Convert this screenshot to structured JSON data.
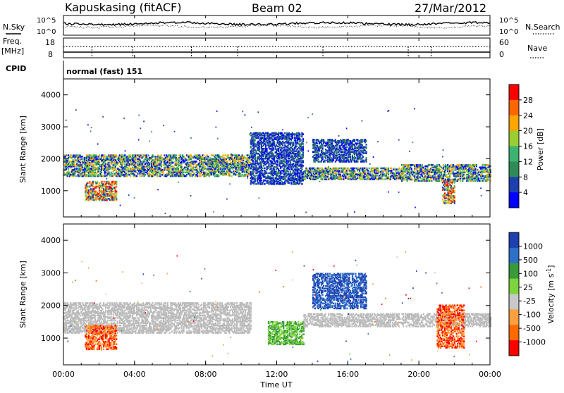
{
  "header": {
    "station": "Kapuskasing (fitACF)",
    "beam": "Beam 02",
    "date": "27/Mar/2012"
  },
  "top_panel": {
    "left_label": "N.Sky",
    "right_label": "N.Search",
    "y_ticks_left": [
      "10^5",
      "10^0"
    ],
    "y_ticks_right": [
      "10^5",
      "10^0"
    ]
  },
  "freq_panel": {
    "left_label_line1": "Freq.",
    "left_label_line2": "[MHz]",
    "right_label": "Nave",
    "y_ticks_left": [
      "18",
      "8"
    ],
    "y_ticks_right": [
      "60",
      "0"
    ]
  },
  "cpid": {
    "label": "CPID",
    "mode": "normal (fast) 151"
  },
  "colors": {
    "power_scale": [
      "#0000ff",
      "#1e3fb0",
      "#2e8b57",
      "#3cb371",
      "#9acd32",
      "#ffa500",
      "#ff6600",
      "#ff0000"
    ],
    "velocity_scale": [
      "#1e3fb0",
      "#2e6fc8",
      "#3a9a3a",
      "#7cd53c",
      "#c8c8c8",
      "#ffa040",
      "#ff6a00",
      "#ff0000"
    ],
    "ground_scatter": "#bbbbbb"
  },
  "chart_data": [
    {
      "type": "heatmap",
      "name": "power",
      "ylabel": "Slant Range [km]",
      "colorbar_label": "Power [dB]",
      "colorbar_ticks": [
        "4",
        "8",
        "12",
        "16",
        "20",
        "24",
        "28"
      ],
      "x_range_hours": [
        0,
        24
      ],
      "ylim_km": [
        180,
        4500
      ],
      "y_ticks": [
        "1000",
        "2000",
        "3000",
        "4000"
      ],
      "y_tick_values": [
        1000,
        2000,
        3000,
        4000
      ],
      "features": [
        {
          "t_start": 0.0,
          "t_end": 10.5,
          "range_start": 1450,
          "range_end": 2100,
          "level": "medium"
        },
        {
          "t_start": 1.2,
          "t_end": 3.0,
          "range_start": 700,
          "range_end": 1300,
          "level": "high"
        },
        {
          "t_start": 10.5,
          "t_end": 13.5,
          "range_start": 1200,
          "range_end": 2800,
          "level": "low"
        },
        {
          "t_start": 13.5,
          "t_end": 19.0,
          "range_start": 1350,
          "range_end": 1700,
          "level": "medium"
        },
        {
          "t_start": 14.0,
          "t_end": 17.0,
          "range_start": 1900,
          "range_end": 2600,
          "level": "low"
        },
        {
          "t_start": 19.0,
          "t_end": 24.0,
          "range_start": 1300,
          "range_end": 1800,
          "level": "medium"
        },
        {
          "t_start": 21.3,
          "t_end": 22.0,
          "range_start": 600,
          "range_end": 1300,
          "level": "high"
        }
      ]
    },
    {
      "type": "heatmap",
      "name": "velocity",
      "ylabel": "Slant Range [km]",
      "colorbar_label": "Velocity [m s^-1]",
      "colorbar_ticks": [
        "1000",
        "500",
        "100",
        "25",
        "-25",
        "-100",
        "-500",
        "-1000"
      ],
      "x_range_hours": [
        0,
        24
      ],
      "ylim_km": [
        180,
        4500
      ],
      "y_ticks": [
        "1000",
        "2000",
        "3000",
        "4000"
      ],
      "y_tick_values": [
        1000,
        2000,
        3000,
        4000
      ],
      "xlabel": "Time UT",
      "x_ticks": [
        "00:00",
        "04:00",
        "08:00",
        "12:00",
        "16:00",
        "20:00",
        "00:00"
      ],
      "x_tick_values": [
        0,
        4,
        8,
        12,
        16,
        20,
        24
      ],
      "features": [
        {
          "t_start": 0.0,
          "t_end": 10.5,
          "range_start": 1150,
          "range_end": 2100,
          "velocity": "ground"
        },
        {
          "t_start": 1.2,
          "t_end": 3.0,
          "range_start": 650,
          "range_end": 1400,
          "velocity": -500
        },
        {
          "t_start": 11.5,
          "t_end": 13.5,
          "range_start": 800,
          "range_end": 1500,
          "velocity": 100
        },
        {
          "t_start": 14.0,
          "t_end": 17.0,
          "range_start": 1900,
          "range_end": 3000,
          "velocity": 500
        },
        {
          "t_start": 13.5,
          "t_end": 24.0,
          "range_start": 1350,
          "range_end": 1750,
          "velocity": "ground"
        },
        {
          "t_start": 21.0,
          "t_end": 22.5,
          "range_start": 700,
          "range_end": 2000,
          "velocity": -500
        }
      ]
    }
  ]
}
